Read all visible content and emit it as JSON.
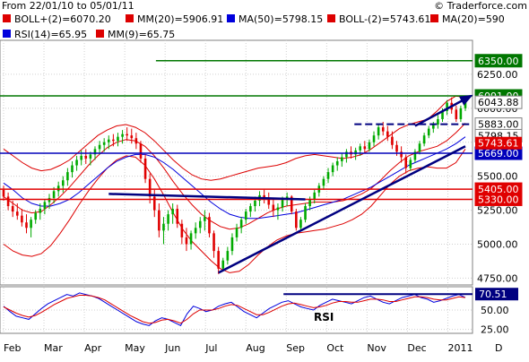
{
  "header": {
    "range": "From 22/01/10 to 05/01/11",
    "copyright": "© Traderforce.com"
  },
  "legend": [
    {
      "label": "BOLL+(2)=6070.20",
      "color": "#dd0000"
    },
    {
      "label": "MM(20)=5906.91",
      "color": "#dd0000"
    },
    {
      "label": "MA(50)=5798.15",
      "color": "#0000dd"
    },
    {
      "label": "BOLL-(2)=5743.61",
      "color": "#dd0000"
    },
    {
      "label": "MA(20)=590",
      "color": "#dd0000"
    },
    {
      "label": "RSI(14)=65.95",
      "color": "#0000dd"
    },
    {
      "label": "MM(9)=65.75",
      "color": "#dd0000"
    }
  ],
  "colors": {
    "up": "#00aa00",
    "down": "#e00000",
    "ma50": "#0000dd",
    "boll": "#dd0000",
    "green_line": "#007700",
    "blue_line": "#0000bb",
    "trend": "#000080",
    "grid": "#d0d0d0",
    "axis": "#808080",
    "text": "#000000"
  },
  "chart_data": [
    {
      "type": "candlestick",
      "yaxis": {
        "min": 4700,
        "max": 6500,
        "ticks": [
          4750,
          5000,
          5250,
          5500,
          5750,
          6000,
          6250
        ]
      },
      "xaxis": {
        "labels": [
          "Feb",
          "Mar",
          "Apr",
          "May",
          "Jun",
          "Jul",
          "Aug",
          "Sep",
          "Oct",
          "Nov",
          "Dec",
          "2011",
          "D"
        ]
      },
      "ohlc": [
        [
          5400,
          5430,
          5320,
          5350
        ],
        [
          5350,
          5380,
          5250,
          5280
        ],
        [
          5280,
          5320,
          5200,
          5240
        ],
        [
          5240,
          5300,
          5180,
          5210
        ],
        [
          5210,
          5260,
          5130,
          5160
        ],
        [
          5160,
          5220,
          5080,
          5120
        ],
        [
          5120,
          5200,
          5050,
          5180
        ],
        [
          5180,
          5250,
          5150,
          5230
        ],
        [
          5230,
          5300,
          5180,
          5260
        ],
        [
          5260,
          5330,
          5220,
          5310
        ],
        [
          5310,
          5370,
          5260,
          5340
        ],
        [
          5340,
          5420,
          5300,
          5390
        ],
        [
          5390,
          5460,
          5350,
          5430
        ],
        [
          5430,
          5500,
          5380,
          5470
        ],
        [
          5470,
          5560,
          5430,
          5530
        ],
        [
          5530,
          5610,
          5490,
          5580
        ],
        [
          5580,
          5650,
          5540,
          5620
        ],
        [
          5620,
          5690,
          5580,
          5650
        ],
        [
          5650,
          5700,
          5590,
          5630
        ],
        [
          5630,
          5680,
          5580,
          5660
        ],
        [
          5660,
          5720,
          5620,
          5700
        ],
        [
          5700,
          5760,
          5660,
          5730
        ],
        [
          5730,
          5780,
          5680,
          5750
        ],
        [
          5750,
          5800,
          5700,
          5770
        ],
        [
          5770,
          5810,
          5720,
          5760
        ],
        [
          5760,
          5820,
          5720,
          5790
        ],
        [
          5790,
          5840,
          5740,
          5810
        ],
        [
          5810,
          5860,
          5760,
          5800
        ],
        [
          5800,
          5850,
          5740,
          5780
        ],
        [
          5780,
          5820,
          5700,
          5740
        ],
        [
          5740,
          5760,
          5600,
          5630
        ],
        [
          5630,
          5660,
          5450,
          5480
        ],
        [
          5480,
          5520,
          5300,
          5350
        ],
        [
          5350,
          5400,
          5200,
          5250
        ],
        [
          5250,
          5300,
          5050,
          5100
        ],
        [
          5100,
          5200,
          5000,
          5150
        ],
        [
          5150,
          5250,
          5100,
          5220
        ],
        [
          5220,
          5300,
          5150,
          5260
        ],
        [
          5260,
          5290,
          5120,
          5150
        ],
        [
          5150,
          5180,
          5000,
          5050
        ],
        [
          5050,
          5120,
          4950,
          5000
        ],
        [
          5000,
          5100,
          4960,
          5080
        ],
        [
          5080,
          5160,
          5040,
          5120
        ],
        [
          5120,
          5200,
          5080,
          5170
        ],
        [
          5170,
          5250,
          5100,
          5200
        ],
        [
          5200,
          5230,
          5050,
          5080
        ],
        [
          5080,
          5100,
          4900,
          4950
        ],
        [
          4950,
          4980,
          4780,
          4820
        ],
        [
          4820,
          4900,
          4800,
          4880
        ],
        [
          4880,
          4980,
          4850,
          4950
        ],
        [
          4950,
          5080,
          4920,
          5050
        ],
        [
          5050,
          5150,
          5020,
          5120
        ],
        [
          5120,
          5200,
          5080,
          5180
        ],
        [
          5180,
          5260,
          5150,
          5240
        ],
        [
          5240,
          5300,
          5200,
          5280
        ],
        [
          5280,
          5350,
          5240,
          5320
        ],
        [
          5320,
          5390,
          5280,
          5360
        ],
        [
          5360,
          5400,
          5300,
          5340
        ],
        [
          5340,
          5380,
          5260,
          5290
        ],
        [
          5290,
          5330,
          5200,
          5250
        ],
        [
          5250,
          5300,
          5180,
          5270
        ],
        [
          5270,
          5350,
          5240,
          5330
        ],
        [
          5330,
          5380,
          5280,
          5350
        ],
        [
          5350,
          5360,
          5220,
          5240
        ],
        [
          5240,
          5260,
          5100,
          5120
        ],
        [
          5120,
          5200,
          5100,
          5180
        ],
        [
          5180,
          5300,
          5160,
          5280
        ],
        [
          5280,
          5350,
          5250,
          5330
        ],
        [
          5330,
          5400,
          5300,
          5380
        ],
        [
          5380,
          5450,
          5350,
          5430
        ],
        [
          5430,
          5500,
          5400,
          5480
        ],
        [
          5480,
          5560,
          5450,
          5530
        ],
        [
          5530,
          5600,
          5500,
          5580
        ],
        [
          5580,
          5640,
          5540,
          5610
        ],
        [
          5610,
          5670,
          5570,
          5640
        ],
        [
          5640,
          5700,
          5600,
          5680
        ],
        [
          5680,
          5720,
          5630,
          5660
        ],
        [
          5660,
          5710,
          5620,
          5690
        ],
        [
          5690,
          5740,
          5650,
          5720
        ],
        [
          5720,
          5760,
          5670,
          5700
        ],
        [
          5700,
          5770,
          5680,
          5750
        ],
        [
          5750,
          5830,
          5720,
          5800
        ],
        [
          5800,
          5880,
          5770,
          5860
        ],
        [
          5860,
          5900,
          5800,
          5830
        ],
        [
          5830,
          5870,
          5760,
          5790
        ],
        [
          5790,
          5830,
          5700,
          5730
        ],
        [
          5730,
          5760,
          5650,
          5680
        ],
        [
          5680,
          5720,
          5600,
          5640
        ],
        [
          5640,
          5660,
          5520,
          5560
        ],
        [
          5560,
          5640,
          5540,
          5620
        ],
        [
          5620,
          5700,
          5600,
          5680
        ],
        [
          5680,
          5760,
          5660,
          5740
        ],
        [
          5740,
          5820,
          5720,
          5800
        ],
        [
          5800,
          5870,
          5780,
          5850
        ],
        [
          5850,
          5900,
          5820,
          5880
        ],
        [
          5880,
          5950,
          5850,
          5920
        ],
        [
          5920,
          6000,
          5900,
          5980
        ],
        [
          5980,
          6060,
          5950,
          6040
        ],
        [
          6040,
          6080,
          5960,
          5990
        ],
        [
          5990,
          6020,
          5900,
          5920
        ],
        [
          5920,
          6020,
          5900,
          6000
        ],
        [
          6000,
          6080,
          5980,
          6060
        ]
      ],
      "overlays": {
        "boll_upper": [
          5700,
          5650,
          5600,
          5560,
          5540,
          5550,
          5580,
          5620,
          5680,
          5740,
          5800,
          5840,
          5870,
          5880,
          5860,
          5820,
          5760,
          5690,
          5620,
          5560,
          5510,
          5480,
          5470,
          5480,
          5500,
          5520,
          5540,
          5560,
          5570,
          5580,
          5600,
          5630,
          5650,
          5660,
          5650,
          5640,
          5630,
          5640,
          5660,
          5700,
          5750,
          5800,
          5850,
          5880,
          5900,
          5920,
          5980,
          6050,
          6090,
          6080
        ],
        "ma20": [
          5350,
          5300,
          5250,
          5230,
          5240,
          5290,
          5350,
          5420,
          5500,
          5580,
          5650,
          5710,
          5750,
          5770,
          5760,
          5720,
          5650,
          5560,
          5460,
          5370,
          5290,
          5220,
          5170,
          5130,
          5110,
          5120,
          5150,
          5190,
          5230,
          5260,
          5280,
          5290,
          5300,
          5310,
          5310,
          5310,
          5320,
          5340,
          5370,
          5410,
          5470,
          5540,
          5600,
          5650,
          5680,
          5700,
          5720,
          5760,
          5820,
          5890
        ],
        "boll_lower": [
          5000,
          4950,
          4920,
          4910,
          4930,
          4990,
          5080,
          5180,
          5290,
          5390,
          5480,
          5560,
          5620,
          5650,
          5640,
          5580,
          5480,
          5360,
          5230,
          5110,
          5020,
          4950,
          4880,
          4820,
          4790,
          4800,
          4850,
          4920,
          4980,
          5030,
          5060,
          5080,
          5090,
          5100,
          5110,
          5130,
          5150,
          5180,
          5220,
          5280,
          5360,
          5440,
          5500,
          5540,
          5560,
          5570,
          5560,
          5560,
          5600,
          5700
        ],
        "ma50": [
          5450,
          5400,
          5340,
          5300,
          5280,
          5280,
          5300,
          5330,
          5380,
          5440,
          5500,
          5560,
          5610,
          5640,
          5660,
          5660,
          5640,
          5600,
          5550,
          5490,
          5430,
          5370,
          5310,
          5260,
          5220,
          5200,
          5190,
          5190,
          5200,
          5210,
          5220,
          5230,
          5250,
          5270,
          5290,
          5310,
          5330,
          5360,
          5390,
          5420,
          5460,
          5500,
          5540,
          5580,
          5610,
          5640,
          5670,
          5700,
          5740,
          5790
        ]
      },
      "hlines": [
        {
          "value": 6350,
          "label": "6350.00",
          "style": "green",
          "x_start_frac": 0.33
        },
        {
          "value": 6091,
          "label": "6091.00",
          "style": "green",
          "x_start_frac": 0.0
        },
        {
          "value": 5883,
          "label": "5883.00",
          "style": "dashed",
          "x_start_frac": 0.75
        },
        {
          "value": 5669,
          "label": "5669.00",
          "style": "blue",
          "x_start_frac": 0.0
        },
        {
          "value": 5405,
          "label": "5405.00",
          "style": "red",
          "x_start_frac": 0.0
        },
        {
          "value": 5330,
          "label": "5330.00",
          "style": "red",
          "x_start_frac": 0.0
        }
      ],
      "right_labels": [
        {
          "value": 6043.88,
          "label": "6043.88",
          "style": "plain"
        },
        {
          "value": 5798.15,
          "label": "5798.15",
          "style": "plain"
        },
        {
          "value": 5743.61,
          "label": "5743.61",
          "style": "red"
        }
      ],
      "trendlines": [
        {
          "from_index": 47,
          "from_value": 4790,
          "to_index": 103,
          "to_value": 5720
        },
        {
          "from_index": 23,
          "from_value": 5370,
          "to_index": 66,
          "to_value": 5330
        }
      ],
      "arrow": {
        "from_index": 90,
        "from_value": 5870,
        "to_index": 103,
        "to_value": 6090
      }
    },
    {
      "type": "line",
      "title": "RSI",
      "yaxis": {
        "min": 20,
        "max": 80,
        "ticks": [
          25,
          50
        ]
      },
      "series": [
        {
          "values": [
            55,
            48,
            42,
            40,
            38,
            45,
            52,
            58,
            62,
            66,
            70,
            68,
            72,
            70,
            68,
            65,
            60,
            55,
            50,
            45,
            40,
            35,
            32,
            30,
            36,
            40,
            38,
            34,
            30,
            45,
            55,
            52,
            48,
            50,
            55,
            58,
            60,
            54,
            48,
            44,
            40,
            46,
            52,
            56,
            60,
            62,
            58,
            54,
            52,
            50,
            56,
            60,
            64,
            62,
            60,
            58,
            62,
            66,
            68,
            64,
            60,
            58,
            62,
            66,
            68,
            70,
            66,
            64,
            60,
            62,
            65,
            68,
            70,
            66
          ],
          "color": "#0000dd"
        },
        {
          "values": [
            54,
            50,
            46,
            43,
            41,
            43,
            47,
            52,
            57,
            61,
            65,
            67,
            69,
            69,
            68,
            66,
            63,
            58,
            53,
            48,
            43,
            39,
            35,
            33,
            34,
            37,
            38,
            36,
            33,
            38,
            45,
            50,
            50,
            50,
            52,
            55,
            57,
            56,
            52,
            48,
            44,
            44,
            47,
            51,
            55,
            58,
            59,
            57,
            55,
            53,
            54,
            56,
            59,
            61,
            61,
            60,
            60,
            62,
            64,
            64,
            63,
            61,
            61,
            63,
            65,
            67,
            67,
            66,
            64,
            63,
            63,
            65,
            67,
            66
          ],
          "color": "#dd0000"
        }
      ],
      "hline": {
        "value": 70.51,
        "label": "70.51",
        "x_start_frac": 0.6
      }
    }
  ]
}
